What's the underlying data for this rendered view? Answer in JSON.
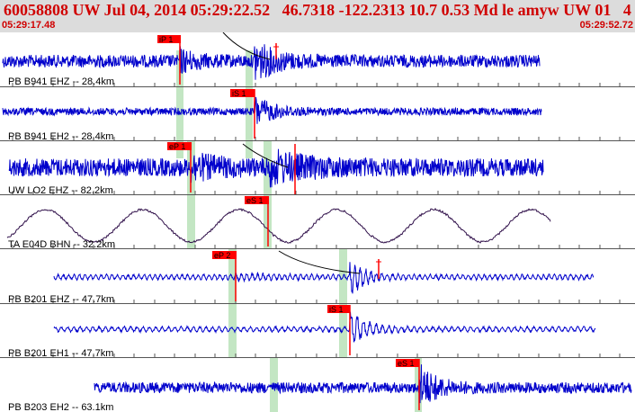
{
  "header": {
    "title": "60058808 UW Jul 04, 2014 05:29:22.52   46.7318 -122.2313 10.7 0.53 Md le amyw UW 01   4",
    "start_time": "05:29:17.48",
    "end_time": "05:29:52.72"
  },
  "colors": {
    "header_bg": "#dcdcdc",
    "header_text": "#d00000",
    "trace_blue": "#0000cc",
    "trace_dark": "#30104a",
    "pick_red": "#ff0000",
    "window_green": "#c3e6c3",
    "divider": "#555555"
  },
  "traces": [
    {
      "label": "PB B941 EHZ -- 28.4km",
      "pick": "iP 1",
      "color": "blue"
    },
    {
      "label": "PB B941 EH2 -- 28.4km",
      "pick": "iS 1",
      "color": "blue"
    },
    {
      "label": "UW LO2 EHZ -- 82.2km",
      "pick": "eP 1",
      "color": "blue"
    },
    {
      "label": "TA E04D BHN -- 32.2km",
      "pick": "eS 1",
      "color": "dark"
    },
    {
      "label": "PB B201 EHZ -- 47.7km",
      "pick": "eP 2",
      "color": "blue"
    },
    {
      "label": "PB B201 EH1 -- 47.7km",
      "pick": "iS 1",
      "color": "blue"
    },
    {
      "label": "PB B203 EH2 -- 63.1km",
      "pick": "eS 1",
      "color": "blue"
    }
  ]
}
